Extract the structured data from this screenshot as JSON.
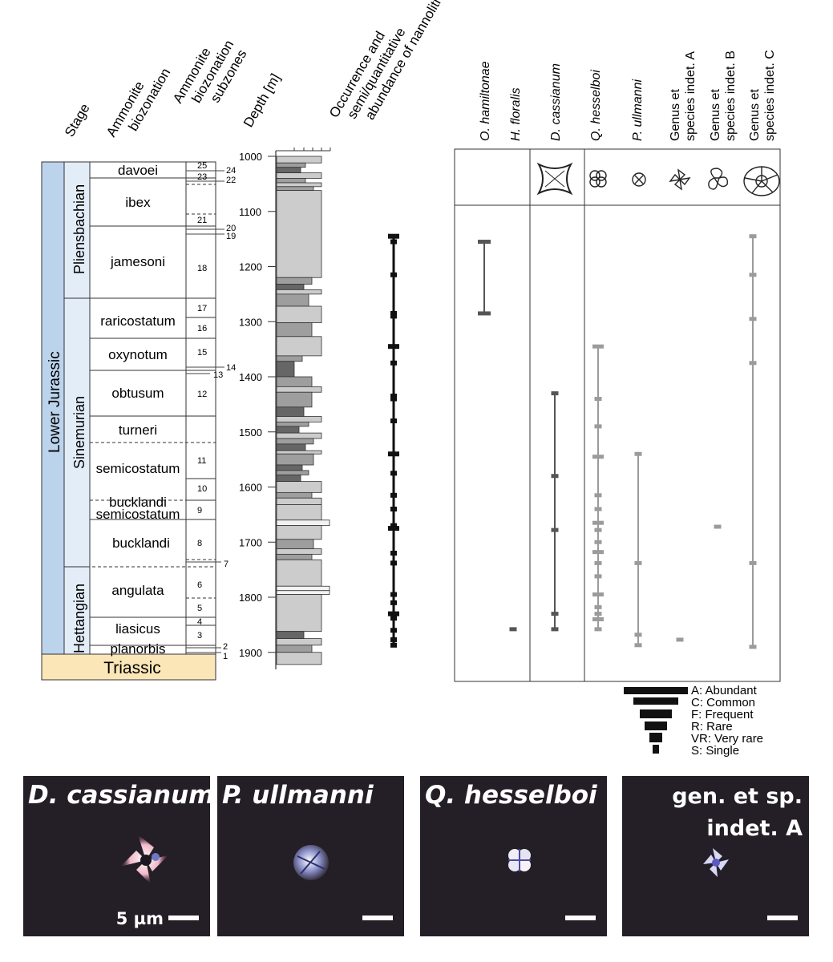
{
  "headers": {
    "stage": "Stage",
    "zonation": [
      "Ammonite",
      "biozonation"
    ],
    "subzones": [
      "Ammonite",
      "biozonation",
      "subzones"
    ],
    "depth": "Depth [m]",
    "occurrence": [
      "Occurrence and",
      "semi/quantitative",
      "abundance of nannoliths"
    ]
  },
  "species_headers": [
    {
      "lines": [
        "O. hamiltonae"
      ],
      "italic": true
    },
    {
      "lines": [
        "H. floralis"
      ],
      "italic": true
    },
    {
      "lines": [
        "D. cassianum"
      ],
      "italic": true
    },
    {
      "lines": [
        "Q. hesselboi"
      ],
      "italic": true
    },
    {
      "lines": [
        "P. ullmanni"
      ],
      "italic": true
    },
    {
      "lines": [
        "Genus et",
        "species indet. A"
      ],
      "italic": false
    },
    {
      "lines": [
        "Genus et",
        "species indet. B"
      ],
      "italic": false
    },
    {
      "lines": [
        "Genus et",
        "species indet. C"
      ],
      "italic": false
    }
  ],
  "system": "Lower Jurassic",
  "stages": [
    "Pliensbachian",
    "Sinemurian",
    "Hettangian"
  ],
  "base": "Triassic",
  "zones": [
    "davoei",
    "ibex",
    "jamesoni",
    "raricostatum",
    "oxynotum",
    "obtusum",
    "turneri",
    "semicostatum",
    "bucklandi",
    "semicostatum",
    "bucklandi",
    "angulata",
    "liasicus",
    "planorbis"
  ],
  "subzone_labels": [
    "25",
    "24",
    "23",
    "22",
    "21",
    "20",
    "19",
    "18",
    "17",
    "16",
    "15",
    "14",
    "13",
    "12",
    "11",
    "10",
    "9",
    "8",
    "7",
    "6",
    "5",
    "4",
    "3",
    "2",
    "1"
  ],
  "depth_ticks": [
    1000,
    1100,
    1200,
    1300,
    1400,
    1500,
    1600,
    1700,
    1800,
    1900
  ],
  "occurrence_markers": [
    1145,
    1155,
    1215,
    1285,
    1290,
    1345,
    1375,
    1435,
    1440,
    1480,
    1540,
    1575,
    1615,
    1640,
    1670,
    1675,
    1720,
    1738,
    1795,
    1810,
    1830,
    1838,
    1860,
    1877,
    1887
  ],
  "species_ranges": [
    {
      "name": "O. hamiltonae",
      "from": 1155,
      "to": 1285,
      "samples": [
        1155,
        1285
      ]
    },
    {
      "name": "H. floralis",
      "from": 1858,
      "to": 1858,
      "samples": [
        1858
      ]
    },
    {
      "name": "D. cassianum",
      "from": 1430,
      "to": 1858,
      "samples": [
        1430,
        1580,
        1678,
        1830,
        1858
      ]
    },
    {
      "name": "Q. hesselboi",
      "from": 1345,
      "to": 1858,
      "samples": [
        1345,
        1440,
        1490,
        1545,
        1615,
        1640,
        1665,
        1678,
        1700,
        1718,
        1738,
        1762,
        1795,
        1818,
        1830,
        1840,
        1858
      ]
    },
    {
      "name": "P. ullmanni",
      "from": 1540,
      "to": 1887,
      "samples": [
        1540,
        1738,
        1868,
        1887
      ]
    },
    {
      "name": "Genus et species indet. A",
      "from": 1877,
      "to": 1877,
      "samples": [
        1877
      ]
    },
    {
      "name": "Genus et species indet. B",
      "from": 1672,
      "to": 1672,
      "samples": [
        1672
      ]
    },
    {
      "name": "Genus et species indet. C",
      "from": 1145,
      "to": 1890,
      "samples": [
        1145,
        1215,
        1295,
        1375,
        1738,
        1890
      ]
    }
  ],
  "legend": [
    "A: Abundant",
    "C: Common",
    "F: Frequent",
    "R: Rare",
    "VR: Very rare",
    "S: Single"
  ],
  "panels": [
    {
      "title": "D. cassianum",
      "scale_label": "5 µm"
    },
    {
      "title": "P. ullmanni"
    },
    {
      "title": "Q. hesselboi"
    },
    {
      "title_lines": [
        "gen. et sp.",
        "indet. A"
      ]
    }
  ],
  "colors": {
    "stage_fill": "#e3edf8",
    "system_fill": "#bcd3ec",
    "triassic_fill": "#fbe6b8",
    "range_dark": "#555555",
    "range_light": "#9b9b9b",
    "panel_bg": "#241e26"
  }
}
